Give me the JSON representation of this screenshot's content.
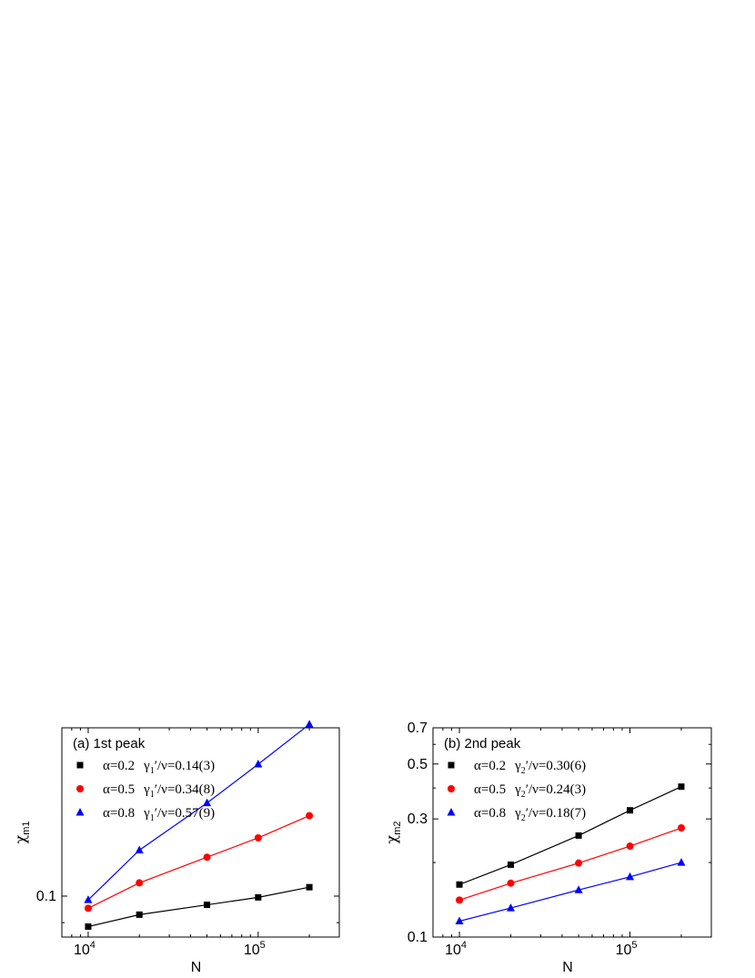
{
  "chart_data": [
    {
      "type": "scatter",
      "title": "(a) 1st peak",
      "xlabel": "N",
      "ylabel": "χm1",
      "ylabel_main": "χ",
      "ylabel_sub": "m1",
      "xscale": "log",
      "yscale": "log",
      "xlim": [
        7000,
        300000
      ],
      "ylim": [
        0.085,
        0.195
      ],
      "xticks": [
        {
          "value": 10000,
          "base": "10",
          "exp": "4"
        },
        {
          "value": 100000,
          "base": "10",
          "exp": "5"
        }
      ],
      "yticks": [
        {
          "value": 0.1,
          "label": "0.1"
        }
      ],
      "legend_position": "top-left",
      "x": [
        10000,
        20000,
        50000,
        100000,
        200000
      ],
      "series": [
        {
          "name": "α=0.2  γ1′/ν=0.14(3)",
          "legend": {
            "a": "α=0.2",
            "g": "γ",
            "gsub": "1",
            "rest": "′/ν=0.14(3)"
          },
          "color": "#000000",
          "marker": "square",
          "values": [
            0.0886,
            0.0929,
            0.0966,
            0.0995,
            0.1036
          ]
        },
        {
          "name": "α=0.5  γ1′/ν=0.34(8)",
          "legend": {
            "a": "α=0.5",
            "g": "γ",
            "gsub": "1",
            "rest": "′/ν=0.34(8)"
          },
          "color": "#ff0000",
          "marker": "circle",
          "values": [
            0.0953,
            0.1054,
            0.1167,
            0.126,
            0.1376
          ]
        },
        {
          "name": "α=0.8  γ1′/ν=0.57(9)",
          "legend": {
            "a": "α=0.8",
            "g": "γ",
            "gsub": "1",
            "rest": "′/ν=0.57(9)"
          },
          "color": "#0000ff",
          "marker": "triangle",
          "values": [
            0.0985,
            0.12,
            0.1447,
            0.1688,
            0.1977
          ]
        }
      ]
    },
    {
      "type": "scatter",
      "title": "(b) 2nd peak",
      "xlabel": "N",
      "ylabel": "χm2",
      "ylabel_main": "χ",
      "ylabel_sub": "m2",
      "xscale": "log",
      "yscale": "log",
      "xlim": [
        7000,
        300000
      ],
      "ylim": [
        0.1,
        0.7
      ],
      "xticks": [
        {
          "value": 10000,
          "base": "10",
          "exp": "4"
        },
        {
          "value": 100000,
          "base": "10",
          "exp": "5"
        }
      ],
      "yticks": [
        {
          "value": 0.1,
          "label": "0.1"
        },
        {
          "value": 0.3,
          "label": "0.3"
        },
        {
          "value": 0.5,
          "label": "0.5"
        },
        {
          "value": 0.7,
          "label": "0.7"
        }
      ],
      "legend_position": "top-left",
      "x": [
        10000,
        20000,
        50000,
        100000,
        200000
      ],
      "series": [
        {
          "name": "α=0.2  γ2′/ν=0.30(6)",
          "legend": {
            "a": "α=0.2",
            "g": "γ",
            "gsub": "2",
            "rest": "′/ν=0.30(6)"
          },
          "color": "#000000",
          "marker": "square",
          "values": [
            0.163,
            0.196,
            0.257,
            0.325,
            0.405
          ]
        },
        {
          "name": "α=0.5  γ2′/ν=0.24(3)",
          "legend": {
            "a": "α=0.5",
            "g": "γ",
            "gsub": "2",
            "rest": "′/ν=0.24(3)"
          },
          "color": "#ff0000",
          "marker": "circle",
          "values": [
            0.141,
            0.165,
            0.199,
            0.233,
            0.276
          ]
        },
        {
          "name": "α=0.8  γ2′/ν=0.18(7)",
          "legend": {
            "a": "α=0.8",
            "g": "γ",
            "gsub": "2",
            "rest": "′/ν=0.18(7)"
          },
          "color": "#0000ff",
          "marker": "triangle",
          "values": [
            0.116,
            0.131,
            0.155,
            0.175,
            0.2
          ]
        }
      ]
    }
  ]
}
